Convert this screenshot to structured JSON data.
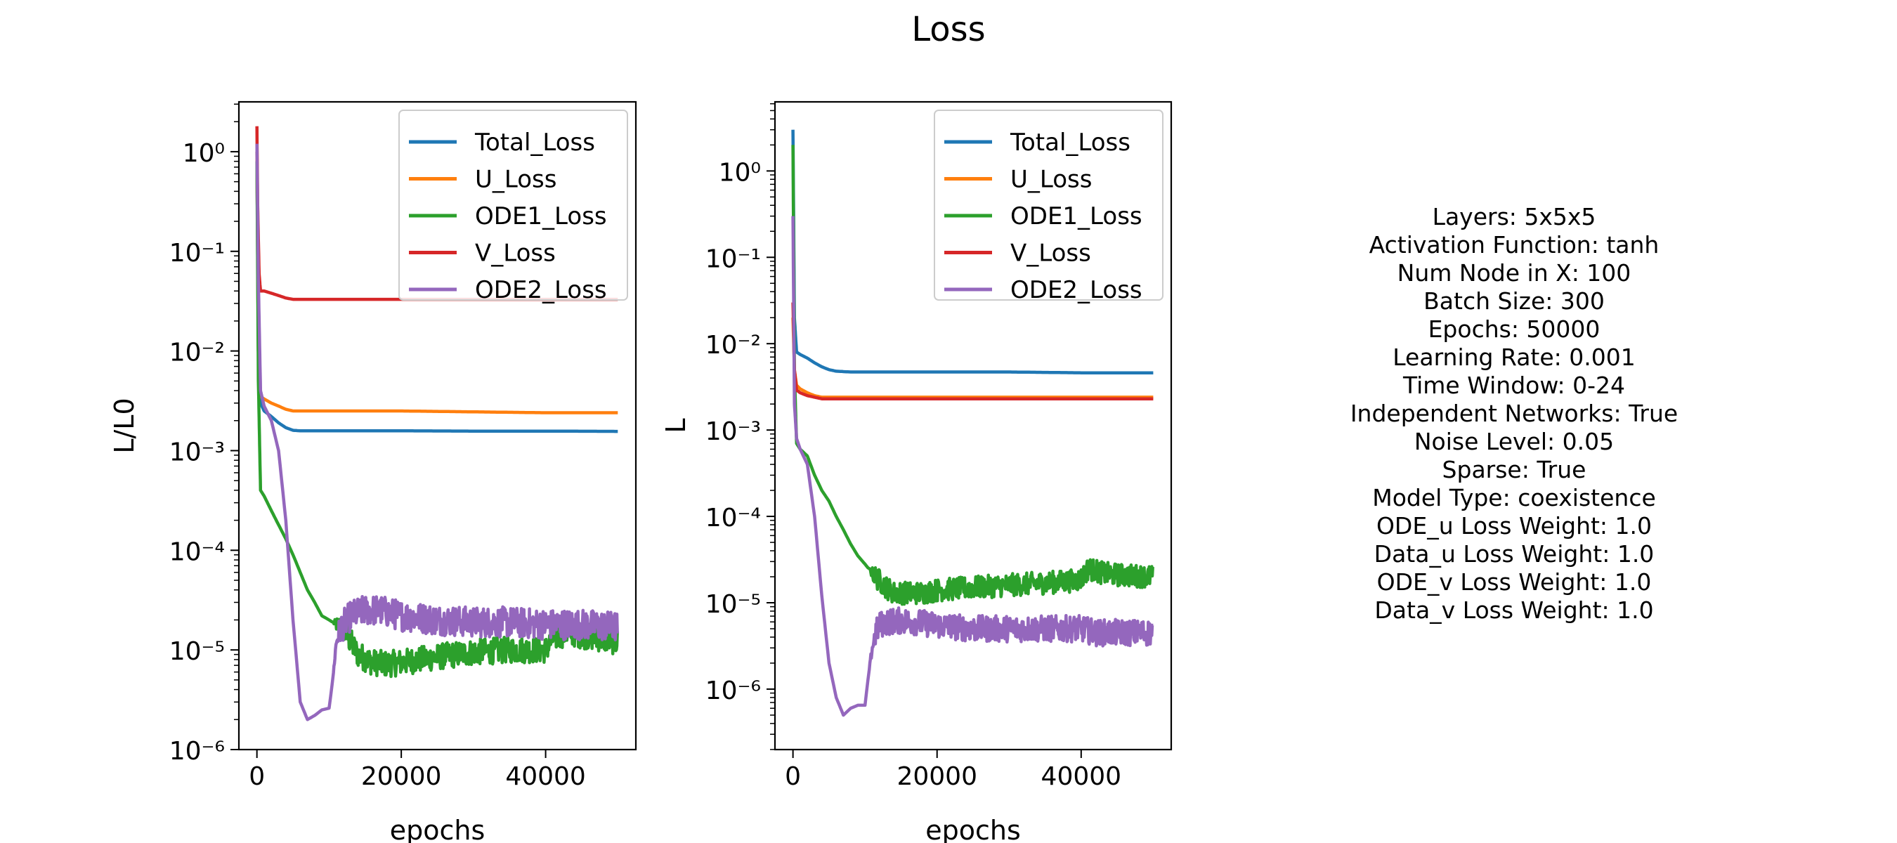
{
  "figure": {
    "title": "Loss",
    "info_lines": [
      "Layers: 5x5x5",
      "Activation Function: tanh",
      "Num Node in X: 100",
      "Batch Size: 300",
      "Epochs: 50000",
      "Learning Rate: 0.001",
      "Time Window: 0-24",
      "Independent Networks: True",
      "Noise Level: 0.05",
      "Sparse: True",
      "Model Type: coexistence",
      "ODE_u Loss Weight: 1.0",
      "Data_u Loss Weight: 1.0",
      "ODE_v Loss Weight: 1.0",
      "Data_v Loss Weight: 1.0"
    ]
  },
  "colors": {
    "Total_Loss": "#1f77b4",
    "U_Loss": "#ff7f0e",
    "ODE1_Loss": "#2ca02c",
    "V_Loss": "#d62728",
    "ODE2_Loss": "#9467bd"
  },
  "chart_data": [
    {
      "type": "line",
      "xlabel": "epochs",
      "ylabel": "L/L0",
      "yscale": "log",
      "xlim": [
        -2500,
        52500
      ],
      "ylim_exp": [
        -6,
        0.5
      ],
      "xticks": [
        0,
        20000,
        40000
      ],
      "xtick_labels": [
        "0",
        "20000",
        "40000"
      ],
      "yticks_exp": [
        0,
        -1,
        -2,
        -3,
        -4,
        -5,
        -6
      ],
      "legend": {
        "position": "upper right",
        "entries": [
          "Total_Loss",
          "U_Loss",
          "ODE1_Loss",
          "V_Loss",
          "ODE2_Loss"
        ]
      },
      "series": [
        {
          "name": "Total_Loss",
          "x": [
            0,
            200,
            500,
            1000,
            2000,
            3000,
            4000,
            5000,
            6000,
            8000,
            10000,
            20000,
            30000,
            40000,
            50000
          ],
          "y": [
            1.0,
            0.01,
            0.003,
            0.0025,
            0.0022,
            0.0019,
            0.0017,
            0.0016,
            0.00158,
            0.00158,
            0.00158,
            0.00158,
            0.00157,
            0.00157,
            0.00156
          ],
          "noise": 0
        },
        {
          "name": "U_Loss",
          "x": [
            0,
            200,
            500,
            1000,
            2000,
            3000,
            4000,
            5000,
            6000,
            8000,
            10000,
            20000,
            30000,
            40000,
            50000
          ],
          "y": [
            1.0,
            0.01,
            0.0035,
            0.0033,
            0.003,
            0.0028,
            0.0026,
            0.0025,
            0.0025,
            0.0025,
            0.0025,
            0.0025,
            0.00245,
            0.0024,
            0.0024
          ],
          "noise": 0
        },
        {
          "name": "ODE1_Loss",
          "x": [
            0,
            200,
            500,
            1000,
            2000,
            3000,
            4000,
            5000,
            6000,
            7000,
            8000,
            9000,
            10000,
            11000,
            12000,
            14000,
            16000,
            18000,
            20000,
            25000,
            30000,
            35000,
            39000,
            40000,
            41000,
            43000,
            45000,
            50000
          ],
          "y": [
            0.8,
            0.005,
            0.0004,
            0.00035,
            0.00025,
            0.00018,
            0.00013,
            9e-05,
            6e-05,
            4e-05,
            3e-05,
            2.2e-05,
            2e-05,
            1.8e-05,
            1.6e-05,
            9e-06,
            7.5e-06,
            7.2e-06,
            7.5e-06,
            8.5e-06,
            9.5e-06,
            1e-05,
            1e-05,
            1e-05,
            1.3e-05,
            1.5e-05,
            1.4e-05,
            1.2e-05
          ],
          "noise": 0.06
        },
        {
          "name": "V_Loss",
          "x": [
            0,
            100,
            300,
            500,
            1000,
            2000,
            3000,
            4000,
            5000,
            10000,
            20000,
            30000,
            40000,
            50000
          ],
          "y": [
            1.8,
            0.3,
            0.06,
            0.04,
            0.04,
            0.038,
            0.036,
            0.034,
            0.033,
            0.033,
            0.033,
            0.033,
            0.033,
            0.033
          ],
          "noise": 0
        },
        {
          "name": "ODE2_Loss",
          "x": [
            0,
            200,
            500,
            1000,
            2000,
            3000,
            4000,
            5000,
            6000,
            7000,
            8000,
            9000,
            10000,
            10500,
            11000,
            11500,
            12000,
            13000,
            15000,
            17000,
            20000,
            25000,
            30000,
            35000,
            40000,
            45000,
            50000
          ],
          "y": [
            1.2,
            0.05,
            0.004,
            0.0028,
            0.002,
            0.001,
            0.0002,
            2e-05,
            3e-06,
            2e-06,
            2.2e-06,
            2.5e-06,
            2.6e-06,
            5e-06,
            1.2e-05,
            1.6e-05,
            1.8e-05,
            2.2e-05,
            2.5e-05,
            2.5e-05,
            2.2e-05,
            2e-05,
            1.9e-05,
            1.9e-05,
            1.8e-05,
            1.8e-05,
            1.7e-05
          ],
          "noise": 0.07
        }
      ]
    },
    {
      "type": "line",
      "xlabel": "epochs",
      "ylabel": "L",
      "yscale": "log",
      "xlim": [
        -2500,
        52500
      ],
      "ylim_exp": [
        -6.7,
        0.8
      ],
      "xticks": [
        0,
        20000,
        40000
      ],
      "xtick_labels": [
        "0",
        "20000",
        "40000"
      ],
      "yticks_exp": [
        0,
        -1,
        -2,
        -3,
        -4,
        -5,
        -6
      ],
      "legend": {
        "position": "upper right",
        "entries": [
          "Total_Loss",
          "U_Loss",
          "ODE1_Loss",
          "V_Loss",
          "ODE2_Loss"
        ]
      },
      "series": [
        {
          "name": "Total_Loss",
          "x": [
            0,
            200,
            500,
            1000,
            2000,
            3000,
            4000,
            5000,
            6000,
            8000,
            10000,
            20000,
            30000,
            40000,
            50000
          ],
          "y": [
            3.0,
            0.02,
            0.008,
            0.0075,
            0.0068,
            0.006,
            0.0054,
            0.005,
            0.0048,
            0.0047,
            0.0047,
            0.0047,
            0.0047,
            0.0046,
            0.0046
          ],
          "noise": 0
        },
        {
          "name": "U_Loss",
          "x": [
            0,
            200,
            500,
            1000,
            2000,
            3000,
            4000,
            5000,
            6000,
            8000,
            10000,
            20000,
            30000,
            40000,
            50000
          ],
          "y": [
            0.02,
            0.005,
            0.0033,
            0.003,
            0.0027,
            0.0025,
            0.0024,
            0.0024,
            0.0024,
            0.0024,
            0.0024,
            0.0024,
            0.0024,
            0.0024,
            0.0024
          ],
          "noise": 0
        },
        {
          "name": "ODE1_Loss",
          "x": [
            0,
            200,
            500,
            1000,
            2000,
            3000,
            4000,
            5000,
            6000,
            7000,
            8000,
            9000,
            10000,
            11000,
            12000,
            13000,
            14000,
            16000,
            18000,
            20000,
            25000,
            30000,
            35000,
            39000,
            40000,
            41000,
            43000,
            45000,
            50000
          ],
          "y": [
            2.0,
            0.005,
            0.0007,
            0.0006,
            0.0005,
            0.0003,
            0.0002,
            0.00015,
            0.0001,
            7e-05,
            4.8e-05,
            3.5e-05,
            2.8e-05,
            2.2e-05,
            1.8e-05,
            1.5e-05,
            1.3e-05,
            1.3e-05,
            1.3e-05,
            1.4e-05,
            1.5e-05,
            1.6e-05,
            1.7e-05,
            1.8e-05,
            1.9e-05,
            2.5e-05,
            2.2e-05,
            2.1e-05,
            2e-05
          ],
          "noise": 0.06
        },
        {
          "name": "V_Loss",
          "x": [
            0,
            200,
            500,
            1000,
            2000,
            3000,
            4000,
            5000,
            6000,
            8000,
            10000,
            20000,
            30000,
            40000,
            50000
          ],
          "y": [
            0.03,
            0.005,
            0.0029,
            0.0027,
            0.0025,
            0.0024,
            0.0023,
            0.0023,
            0.0023,
            0.0023,
            0.0023,
            0.0023,
            0.0023,
            0.0023,
            0.0023
          ],
          "noise": 0
        },
        {
          "name": "ODE2_Loss",
          "x": [
            0,
            200,
            500,
            1000,
            2000,
            3000,
            4000,
            5000,
            6000,
            7000,
            8000,
            9000,
            10000,
            10500,
            11000,
            11500,
            12000,
            13000,
            15000,
            17000,
            20000,
            25000,
            30000,
            35000,
            40000,
            42000,
            45000,
            50000
          ],
          "y": [
            0.3,
            0.002,
            0.0008,
            0.0006,
            0.0004,
            0.0001,
            1.2e-05,
            2e-06,
            8e-07,
            5e-07,
            6e-07,
            6.5e-07,
            6.5e-07,
            1.5e-06,
            3e-06,
            4.5e-06,
            5.5e-06,
            6e-06,
            6.2e-06,
            6e-06,
            5.5e-06,
            5e-06,
            5e-06,
            5e-06,
            5e-06,
            4.5e-06,
            4.5e-06,
            4.5e-06
          ],
          "noise": 0.07
        }
      ]
    }
  ]
}
